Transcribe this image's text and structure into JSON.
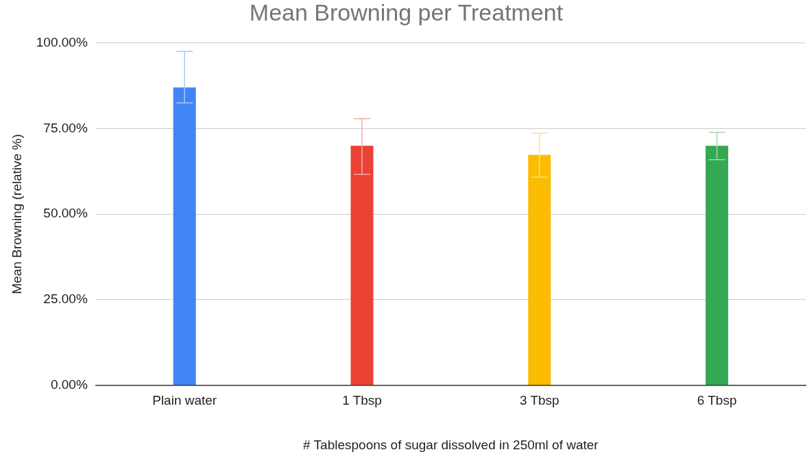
{
  "chart_data": {
    "type": "bar",
    "title": "Mean Browning per Treatment",
    "xlabel": "# Tablespoons of sugar dissolved in 250ml of water",
    "ylabel": "Mean Browning (relative %)",
    "categories": [
      "Plain water",
      "1 Tbsp",
      "3 Tbsp",
      "6 Tbsp"
    ],
    "values": [
      87,
      70,
      67.3,
      70
    ],
    "colors": [
      "#4285f4",
      "#ea4335",
      "#fbbc04",
      "#34a853"
    ],
    "errors": [
      [
        82.5,
        97.6
      ],
      [
        61.6,
        77.9
      ],
      [
        60.8,
        73.7
      ],
      [
        65.9,
        73.9
      ]
    ],
    "ylim": [
      0,
      100
    ],
    "yticks": [
      {
        "value": 0,
        "label": "0.00%"
      },
      {
        "value": 25,
        "label": "25.00%"
      },
      {
        "value": 50,
        "label": "50.00%"
      },
      {
        "value": 75,
        "label": "75.00%"
      },
      {
        "value": 100,
        "label": "100.00%"
      }
    ],
    "grid": "y",
    "legend": false
  }
}
